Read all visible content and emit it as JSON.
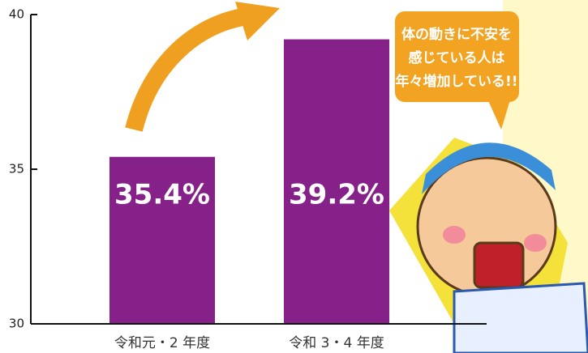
{
  "chart_data": {
    "type": "bar",
    "categories": [
      "令和元・2 年度",
      "令和 3・4 年度"
    ],
    "values": [
      35.4,
      39.2
    ],
    "value_labels": [
      "35.4%",
      "39.2%"
    ],
    "color": "#86218a",
    "ylim": [
      30,
      40
    ],
    "yticks": [
      30,
      35,
      40
    ],
    "annotation": [
      "体の動きに不安を",
      "感じている人は",
      "年々増加している!!"
    ]
  }
}
